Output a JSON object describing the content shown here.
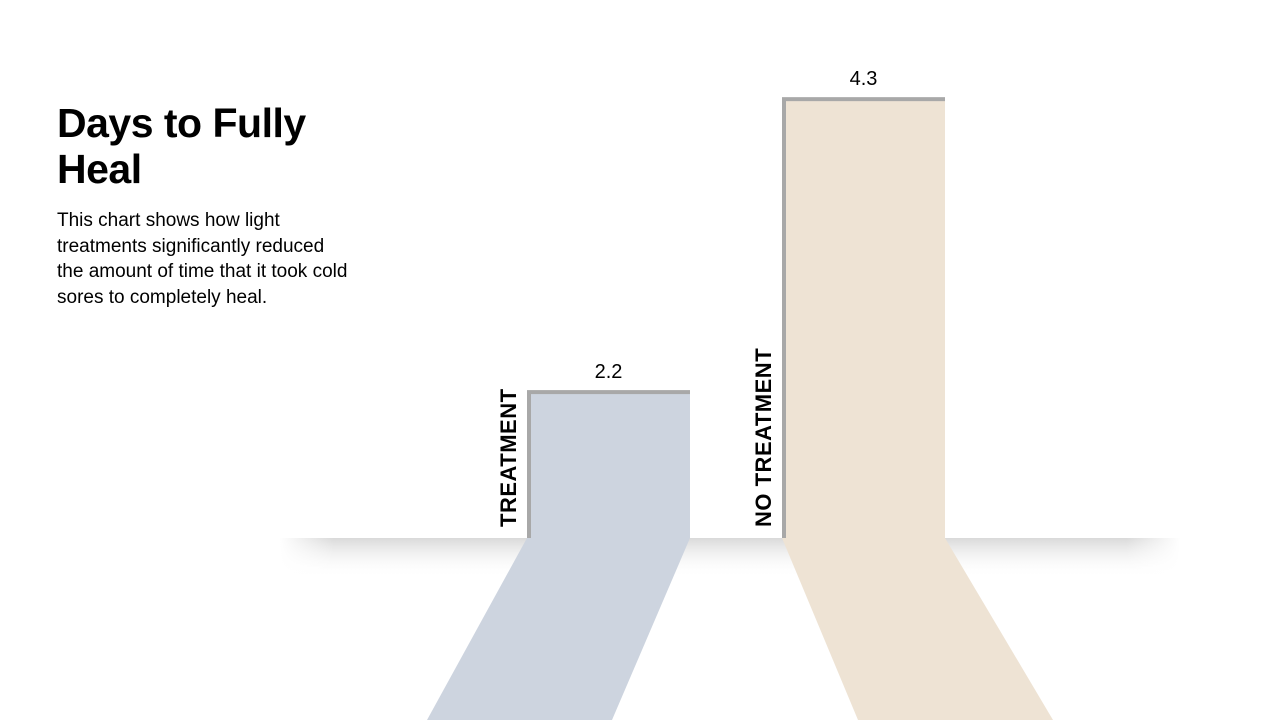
{
  "chart_data": {
    "type": "bar",
    "title": "Days to Fully Heal",
    "description_lines": [
      "This chart shows how light",
      "treatments significantly reduced",
      "the amount of time that it took cold",
      "sores to completely heal."
    ],
    "categories": [
      "TREATMENT",
      "NO TREATMENT"
    ],
    "values": [
      2.2,
      4.3
    ],
    "data_labels": [
      "2.2",
      "4.3"
    ],
    "colors": [
      "#CDD4DF",
      "#EEE3D4"
    ],
    "grid": false,
    "legend": "none"
  }
}
